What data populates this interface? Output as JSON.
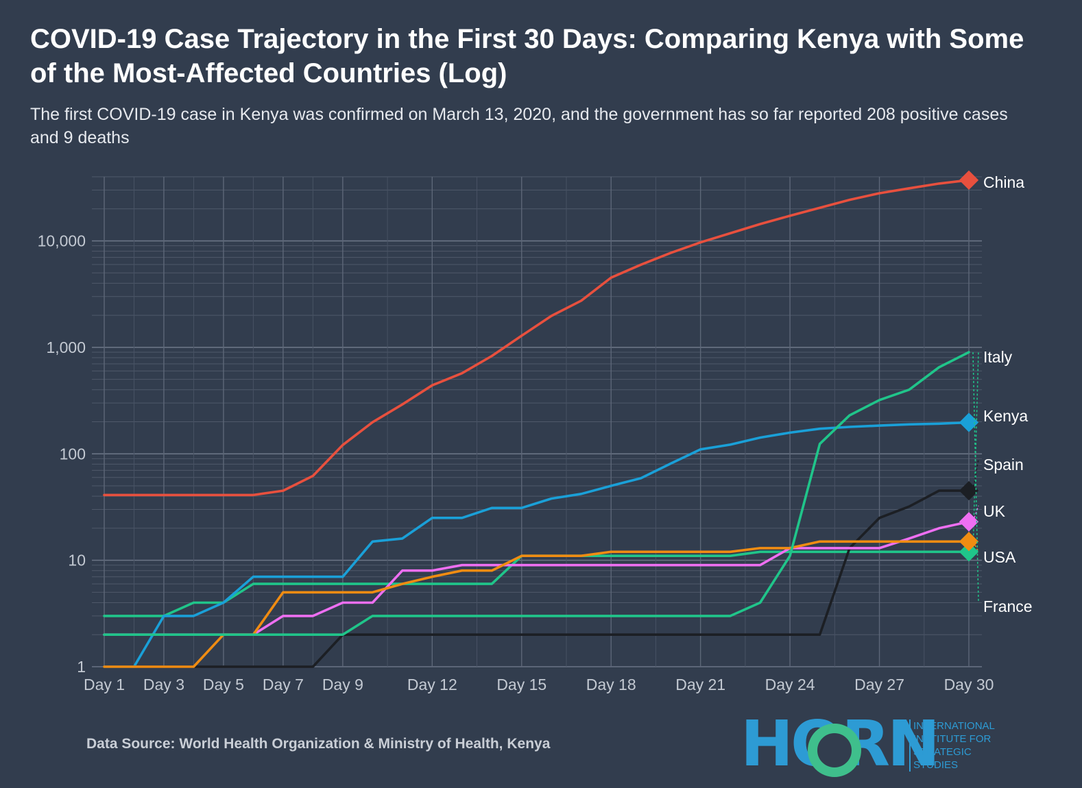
{
  "title": "COVID-19 Case Trajectory in the First 30 Days: Comparing Kenya with Some of the Most-Affected Countries (Log)",
  "subtitle": "The first COVID-19 case in Kenya was confirmed on March 13, 2020, and the government has so far reported 208 positive cases and 9 deaths",
  "source": "Data Source: World Health Organization & Ministry of Health, Kenya",
  "logo": {
    "word": "HORN",
    "lines": [
      "INTERNATIONAL",
      "INSTITUTE FOR",
      "STRATEGIC",
      "STUDIES"
    ],
    "colors": {
      "blue": "#2d9bd4",
      "green": "#3fbf8c"
    }
  },
  "chart_data": {
    "type": "line",
    "yscale": "log",
    "ylim": [
      1,
      40000
    ],
    "y_ticks": [
      1,
      10,
      100,
      1000,
      10000
    ],
    "y_tick_labels": [
      "1",
      "10",
      "100",
      "1,000",
      "10,000"
    ],
    "x": [
      1,
      2,
      3,
      4,
      5,
      6,
      7,
      8,
      9,
      10,
      11,
      12,
      13,
      14,
      15,
      16,
      17,
      18,
      19,
      20,
      21,
      22,
      23,
      24,
      25,
      26,
      27,
      28,
      29,
      30
    ],
    "x_ticks": [
      1,
      3,
      5,
      7,
      9,
      12,
      15,
      18,
      21,
      24,
      27,
      30
    ],
    "x_tick_labels": [
      "Day 1",
      "Day 3",
      "Day 5",
      "Day 7",
      "Day 9",
      "Day 12",
      "Day 15",
      "Day 18",
      "Day 21",
      "Day 24",
      "Day 27",
      "Day 30"
    ],
    "grid": true,
    "legend": "end-labels-right",
    "series": [
      {
        "name": "China",
        "color": "#e8503e",
        "values": [
          41,
          41,
          41,
          41,
          41,
          41,
          45,
          62,
          121,
          198,
          291,
          440,
          571,
          830,
          1287,
          1975,
          2744,
          4515,
          5974,
          7711,
          9692,
          11791,
          14380,
          17205,
          20438,
          24324,
          28018,
          31161,
          34546,
          37198
        ]
      },
      {
        "name": "Italy",
        "color": "#20c58a",
        "values": [
          3,
          3,
          3,
          4,
          4,
          6,
          6,
          6,
          6,
          6,
          6,
          6,
          6,
          6,
          11,
          11,
          11,
          11,
          11,
          11,
          11,
          11,
          12,
          12,
          12,
          12,
          12,
          12,
          12,
          12
        ]
      },
      {
        "name": "Kenya",
        "color": "#1aa0d8",
        "values": [
          1,
          1,
          3,
          3,
          4,
          7,
          7,
          7,
          7,
          15,
          16,
          25,
          25,
          31,
          31,
          38,
          42,
          50,
          59,
          81,
          110,
          122,
          142,
          158,
          172,
          179,
          184,
          189,
          192,
          197
        ]
      },
      {
        "name": "Spain",
        "color": "#1c1f24",
        "values": [
          1,
          1,
          1,
          1,
          1,
          1,
          1,
          1,
          2,
          2,
          2,
          2,
          2,
          2,
          2,
          2,
          2,
          2,
          2,
          2,
          2,
          2,
          2,
          2,
          2,
          13,
          25,
          32,
          45,
          45
        ]
      },
      {
        "name": "UK",
        "color": "#ee6ff2",
        "values": [
          2,
          2,
          2,
          2,
          2,
          2,
          3,
          3,
          4,
          4,
          8,
          8,
          9,
          9,
          9,
          9,
          9,
          9,
          9,
          9,
          9,
          9,
          9,
          13,
          13,
          13,
          13,
          16,
          20,
          23
        ]
      },
      {
        "name": "USA",
        "color": "#f08c12",
        "values": [
          1,
          1,
          1,
          1,
          2,
          2,
          5,
          5,
          5,
          5,
          6,
          7,
          8,
          8,
          11,
          11,
          11,
          12,
          12,
          12,
          12,
          12,
          13,
          13,
          15,
          15,
          15,
          15,
          15,
          15
        ]
      },
      {
        "name": "France",
        "color": "#20c58a",
        "values": [
          2,
          2,
          2,
          2,
          2,
          2,
          2,
          2,
          2,
          3,
          3,
          3,
          3,
          3,
          3,
          3,
          3,
          3,
          3,
          3,
          3,
          3,
          4,
          11,
          124,
          230,
          320,
          400,
          650,
          900
        ]
      }
    ]
  }
}
